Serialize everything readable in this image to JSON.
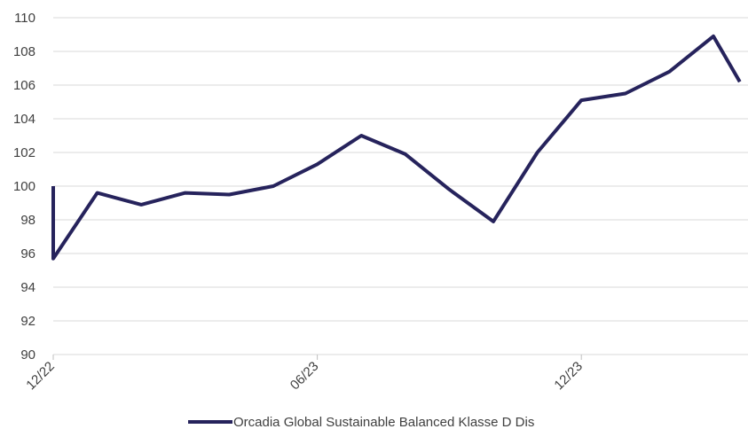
{
  "chart_data": {
    "type": "line",
    "ylim": [
      90,
      110
    ],
    "y_ticks": [
      90,
      92,
      94,
      96,
      98,
      100,
      102,
      104,
      106,
      108,
      110
    ],
    "x_ticks": [
      {
        "label": "12/22",
        "x": 0
      },
      {
        "label": "06/23",
        "x": 6
      },
      {
        "label": "12/23",
        "x": 12
      }
    ],
    "x_range": [
      0,
      15.6
    ],
    "grid": "horizontal",
    "legend_position": "bottom",
    "series": [
      {
        "name": "Orcadia Global Sustainable Balanced Klasse D Dis",
        "color": "#26235c",
        "points": [
          [
            0,
            100.0
          ],
          [
            0,
            95.7
          ],
          [
            1,
            99.6
          ],
          [
            2,
            98.9
          ],
          [
            3,
            99.6
          ],
          [
            4,
            99.5
          ],
          [
            5,
            100.0
          ],
          [
            6,
            101.3
          ],
          [
            7,
            103.0
          ],
          [
            8,
            101.9
          ],
          [
            9,
            99.8
          ],
          [
            10,
            97.9
          ],
          [
            11,
            102.0
          ],
          [
            12,
            105.1
          ],
          [
            13,
            105.5
          ],
          [
            14,
            106.8
          ],
          [
            15,
            108.9
          ],
          [
            15.6,
            106.2
          ]
        ]
      }
    ]
  }
}
